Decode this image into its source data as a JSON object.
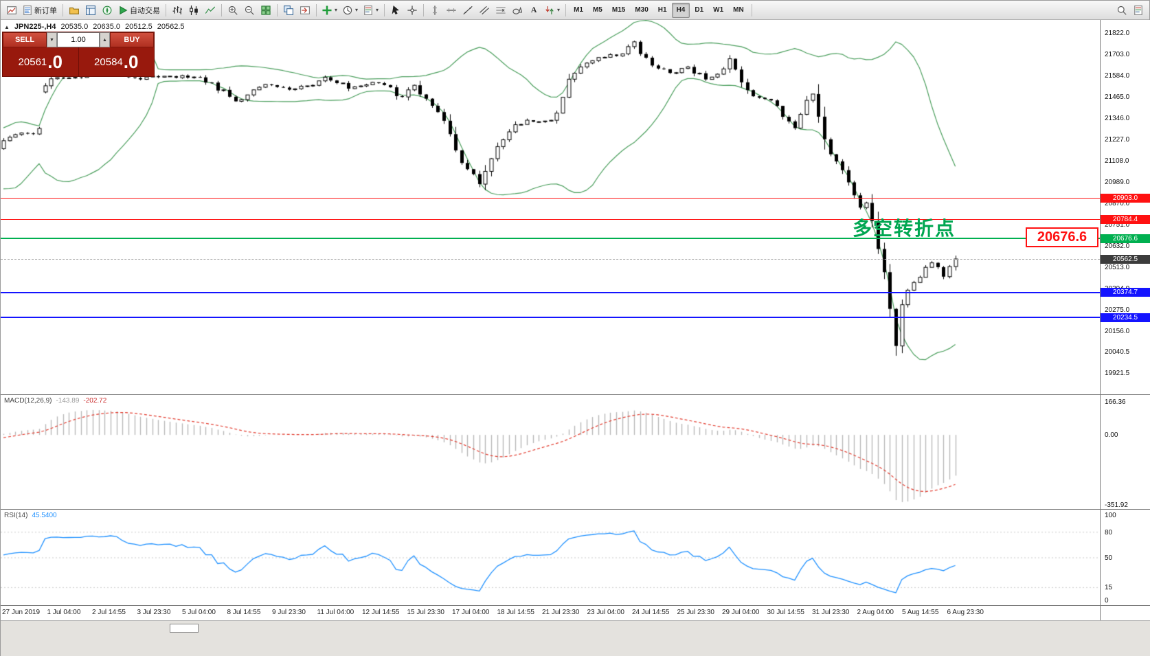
{
  "toolbar": {
    "groups": [
      {
        "items": [
          {
            "name": "new-chart-button",
            "icon": "newchart"
          },
          {
            "name": "new-order-button",
            "icon": "neworder",
            "label": "新订单"
          }
        ]
      },
      {
        "items": [
          {
            "name": "profiles-button",
            "icon": "profiles"
          },
          {
            "name": "market-watch-button",
            "icon": "marketwatch"
          },
          {
            "name": "navigator-button",
            "icon": "navigator"
          },
          {
            "name": "autotrading-button",
            "icon": "autoplay",
            "label": "自动交易"
          }
        ]
      },
      {
        "items": [
          {
            "name": "chart-bars-button",
            "icon": "bars"
          },
          {
            "name": "chart-candles-button",
            "icon": "candles"
          },
          {
            "name": "chart-line-button",
            "icon": "linechart"
          }
        ]
      },
      {
        "items": [
          {
            "name": "zoom-in-button",
            "icon": "zoomin"
          },
          {
            "name": "zoom-out-button",
            "icon": "zoomout"
          },
          {
            "name": "tile-windows-button",
            "icon": "tiles"
          }
        ]
      },
      {
        "items": [
          {
            "name": "auto-arrange-button",
            "icon": "arrange"
          },
          {
            "name": "chart-shift-button",
            "icon": "shiftend"
          }
        ]
      },
      {
        "items": [
          {
            "name": "indicators-button",
            "icon": "indicators",
            "caret": true
          },
          {
            "name": "periods-button",
            "icon": "periods",
            "caret": true
          },
          {
            "name": "templates-button",
            "icon": "template",
            "caret": true
          }
        ]
      },
      {
        "items": [
          {
            "name": "cursor-button",
            "icon": "cursor"
          },
          {
            "name": "crosshair-button",
            "icon": "crosshair"
          }
        ]
      },
      {
        "items": [
          {
            "name": "vertical-line-button",
            "icon": "vline"
          },
          {
            "name": "horizontal-line-button",
            "icon": "hline"
          },
          {
            "name": "trendline-button",
            "icon": "tline"
          },
          {
            "name": "channel-button",
            "icon": "channel"
          },
          {
            "name": "fibonacci-button",
            "icon": "fibo"
          },
          {
            "name": "shapes-button",
            "icon": "shapes"
          },
          {
            "name": "text-button",
            "glyph": "A"
          },
          {
            "name": "arrows-button",
            "icon": "arrowsdd",
            "caret": true
          }
        ]
      },
      {
        "items": [
          {
            "name": "timeframe-m1",
            "type": "tf",
            "label": "M1"
          },
          {
            "name": "timeframe-m5",
            "type": "tf",
            "label": "M5"
          },
          {
            "name": "timeframe-m15",
            "type": "tf",
            "label": "M15"
          },
          {
            "name": "timeframe-m30",
            "type": "tf",
            "label": "M30"
          },
          {
            "name": "timeframe-h1",
            "type": "tf",
            "label": "H1"
          },
          {
            "name": "timeframe-h4",
            "type": "tf",
            "label": "H4",
            "active": true
          },
          {
            "name": "timeframe-d1",
            "type": "tf",
            "label": "D1"
          },
          {
            "name": "timeframe-w1",
            "type": "tf",
            "label": "W1"
          },
          {
            "name": "timeframe-mn",
            "type": "tf",
            "label": "MN"
          }
        ]
      },
      {
        "align": "right",
        "items": [
          {
            "name": "search-button",
            "icon": "search"
          },
          {
            "name": "quotes-button",
            "icon": "template"
          }
        ]
      }
    ]
  },
  "symbol_bar": {
    "symbol_period": "JPN225-,H4",
    "open": "20535.0",
    "high": "20635.0",
    "low": "20512.5",
    "close": "20562.5"
  },
  "trade_panel": {
    "sell_label": "SELL",
    "buy_label": "BUY",
    "volume": "1.00",
    "sell_price_main": "20561",
    "sell_price_pips": ".0",
    "buy_price_main": "20584",
    "buy_price_pips": ".0"
  },
  "annotation": {
    "text": "多空转折点",
    "color": "#00a651"
  },
  "price_callout": {
    "text": "20676.6"
  },
  "price_axis": {
    "labels": [
      "21822.0",
      "21703.0",
      "21584.0",
      "21465.0",
      "21346.0",
      "21227.0",
      "21108.0",
      "20989.0",
      "20870.0",
      "20751.0",
      "20632.0",
      "20513.0",
      "20394.0",
      "20275.0",
      "20156.0",
      "20040.5",
      "19921.5"
    ],
    "tags": [
      {
        "text": "20903.0",
        "price": 20903.0,
        "color": "#ff1111"
      },
      {
        "text": "20784.4",
        "price": 20784.4,
        "color": "#ff1111"
      },
      {
        "text": "20676.6",
        "price": 20676.6,
        "color": "#00b050"
      },
      {
        "text": "20562.5",
        "price": 20562.5,
        "color": "#3c3c3c"
      },
      {
        "text": "20374.7",
        "price": 20374.7,
        "color": "#1414ff"
      },
      {
        "text": "20234.5",
        "price": 20234.5,
        "color": "#1414ff"
      }
    ]
  },
  "indicators": {
    "macd": {
      "name": "MACD(12,26,9)",
      "value_main": "-143.89",
      "value_signal": "-202.72",
      "axis": [
        "166.36",
        "0.00",
        "-351.92"
      ],
      "histogram_color": "#b8b8b8",
      "signal_color": "#e23b2e"
    },
    "rsi": {
      "name": "RSI(14)",
      "value": "45.5400",
      "axis": [
        "100",
        "80",
        "50",
        "15",
        "0"
      ],
      "levels": [
        80,
        50,
        15
      ],
      "line_color": "#1e90ff"
    }
  },
  "time_axis": {
    "labels": [
      "27 Jun 2019",
      "1 Jul 04:00",
      "2 Jul 14:55",
      "3 Jul 23:30",
      "5 Jul 04:00",
      "8 Jul 14:55",
      "9 Jul 23:30",
      "11 Jul 04:00",
      "12 Jul 14:55",
      "15 Jul 23:30",
      "17 Jul 04:00",
      "18 Jul 14:55",
      "21 Jul 23:30",
      "23 Jul 04:00",
      "24 Jul 14:55",
      "25 Jul 23:30",
      "29 Jul 04:00",
      "30 Jul 14:55",
      "31 Jul 23:30",
      "2 Aug 04:00",
      "5 Aug 14:55",
      "6 Aug 23:30"
    ]
  },
  "chart_data": {
    "type": "candlestick",
    "symbol": "JPN225-",
    "timeframe": "H4",
    "ohlc_current": {
      "open": 20535.0,
      "high": 20635.0,
      "low": 20512.5,
      "close": 20562.5
    },
    "current_price": 20562.5,
    "price_range_visible": [
      19921.5,
      21822.0
    ],
    "overlays": {
      "bollinger": {
        "period": 20,
        "deviation": 2,
        "color": "#4a9e5c"
      }
    },
    "levels": [
      {
        "name": "resistance-line-1",
        "price": 20903.0,
        "color": "#ff1111",
        "thickness": 1,
        "style": "solid"
      },
      {
        "name": "resistance-line-2",
        "price": 20784.4,
        "color": "#ff1111",
        "thickness": 1,
        "style": "solid"
      },
      {
        "name": "pivot-line",
        "price": 20676.6,
        "color": "#00b050",
        "thickness": 2,
        "style": "solid",
        "label": "多空转折点"
      },
      {
        "name": "support-line-1",
        "price": 20374.7,
        "color": "#1414ff",
        "thickness": 2,
        "style": "solid"
      },
      {
        "name": "support-line-2",
        "price": 20234.5,
        "color": "#1414ff",
        "thickness": 2,
        "style": "solid"
      },
      {
        "name": "bid-line",
        "price": 20562.5,
        "color": "#aaaaaa",
        "thickness": 1,
        "style": "dashed"
      }
    ],
    "anchors": [
      [
        -320,
        21500
      ],
      [
        -260,
        20900
      ],
      [
        -200,
        21300
      ],
      [
        -140,
        21000
      ],
      [
        -80,
        21200
      ],
      [
        -30,
        21150
      ],
      [
        4,
        21230
      ],
      [
        30,
        21255
      ],
      [
        55,
        21270
      ],
      [
        66,
        21560
      ],
      [
        110,
        21580
      ],
      [
        160,
        21620
      ],
      [
        200,
        21570
      ],
      [
        246,
        21590
      ],
      [
        299,
        21560
      ],
      [
        342,
        21450
      ],
      [
        384,
        21530
      ],
      [
        427,
        21500
      ],
      [
        470,
        21570
      ],
      [
        512,
        21520
      ],
      [
        555,
        21560
      ],
      [
        582,
        21450
      ],
      [
        598,
        21550
      ],
      [
        614,
        21470
      ],
      [
        630,
        21400
      ],
      [
        651,
        21300
      ],
      [
        667,
        21120
      ],
      [
        683,
        21050
      ],
      [
        699,
        20980
      ],
      [
        710,
        21100
      ],
      [
        726,
        21200
      ],
      [
        747,
        21300
      ],
      [
        769,
        21350
      ],
      [
        790,
        21320
      ],
      [
        811,
        21380
      ],
      [
        827,
        21560
      ],
      [
        843,
        21640
      ],
      [
        865,
        21680
      ],
      [
        886,
        21700
      ],
      [
        907,
        21720
      ],
      [
        918,
        21790
      ],
      [
        934,
        21700
      ],
      [
        950,
        21650
      ],
      [
        966,
        21620
      ],
      [
        982,
        21600
      ],
      [
        998,
        21630
      ],
      [
        1014,
        21600
      ],
      [
        1030,
        21570
      ],
      [
        1046,
        21600
      ],
      [
        1062,
        21690
      ],
      [
        1078,
        21550
      ],
      [
        1094,
        21480
      ],
      [
        1110,
        21450
      ],
      [
        1126,
        21440
      ],
      [
        1142,
        21350
      ],
      [
        1158,
        21300
      ],
      [
        1169,
        21400
      ],
      [
        1180,
        21520
      ],
      [
        1196,
        21280
      ],
      [
        1206,
        21150
      ],
      [
        1217,
        21100
      ],
      [
        1228,
        21050
      ],
      [
        1238,
        20950
      ],
      [
        1249,
        20850
      ],
      [
        1260,
        20890
      ],
      [
        1270,
        20750
      ],
      [
        1281,
        20550
      ],
      [
        1292,
        20380
      ],
      [
        1297,
        20150
      ],
      [
        1302,
        20060
      ],
      [
        1313,
        20350
      ],
      [
        1324,
        20400
      ],
      [
        1334,
        20450
      ],
      [
        1345,
        20500
      ],
      [
        1356,
        20550
      ],
      [
        1366,
        20500
      ],
      [
        1377,
        20430
      ],
      [
        1382,
        20540
      ],
      [
        1388,
        20562.5
      ]
    ]
  }
}
